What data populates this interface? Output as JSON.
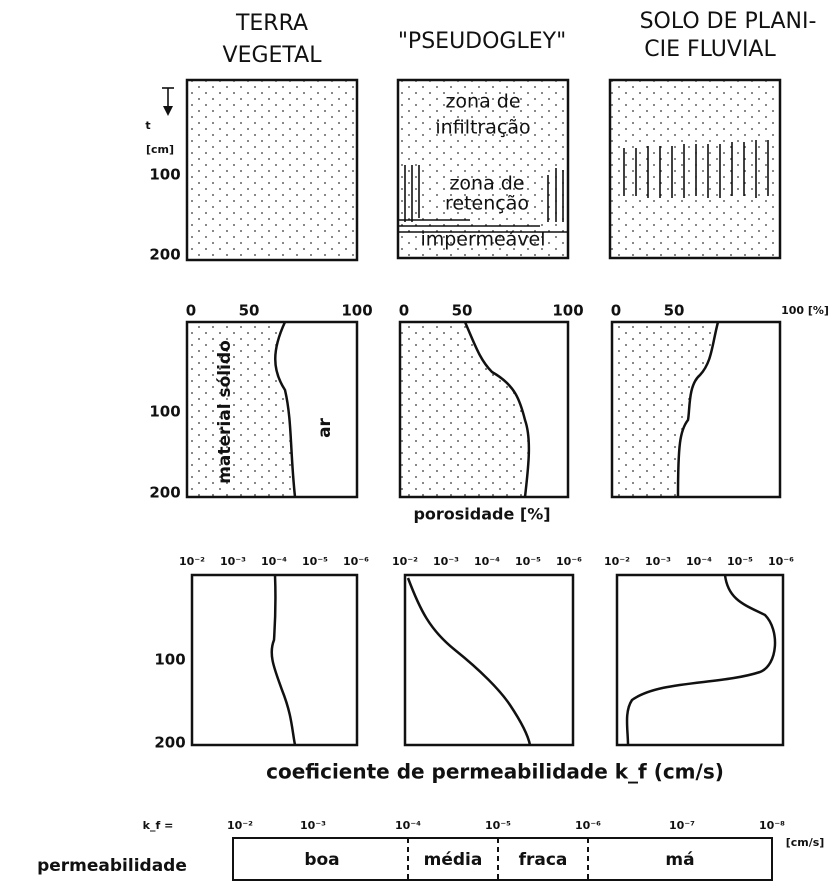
{
  "headers": [
    [
      "TERRA",
      "VEGETAL"
    ],
    [
      "\"PSEUDOGLEY\""
    ],
    [
      "SOLO DE PLANI-",
      "CIE FLUVIAL"
    ]
  ],
  "profiles": {
    "depth_symbol": "t",
    "depth_unit": "[cm]",
    "depth_ticks": [
      "100",
      "200"
    ],
    "zones": [
      "zona de",
      "infiltração",
      "zona de",
      "retenção",
      "impermeável"
    ]
  },
  "porosity": {
    "ticks": [
      "0",
      "50",
      "100"
    ],
    "last_tick": "100 [%]",
    "depth_ticks": [
      "100",
      "200"
    ],
    "solid_label": "material sólido",
    "air_label": "ar",
    "axis_title": "porosidade [%]"
  },
  "permeability": {
    "ticks": [
      "10⁻²",
      "10⁻³",
      "10⁻⁴",
      "10⁻⁵",
      "10⁻⁶"
    ],
    "depth_ticks": [
      "100",
      "200"
    ],
    "axis_title": "coeficiente de permeabilidade k_f (cm/s)"
  },
  "scale": {
    "symbol": "k_f =",
    "ticks": [
      "10⁻²",
      "10⁻³",
      "10⁻⁴",
      "10⁻⁵",
      "10⁻⁶",
      "10⁻⁷",
      "10⁻⁸"
    ],
    "unit": "[cm/s]",
    "label": "permeabilidade",
    "classes": [
      "boa",
      "média",
      "fraca",
      "má"
    ]
  }
}
